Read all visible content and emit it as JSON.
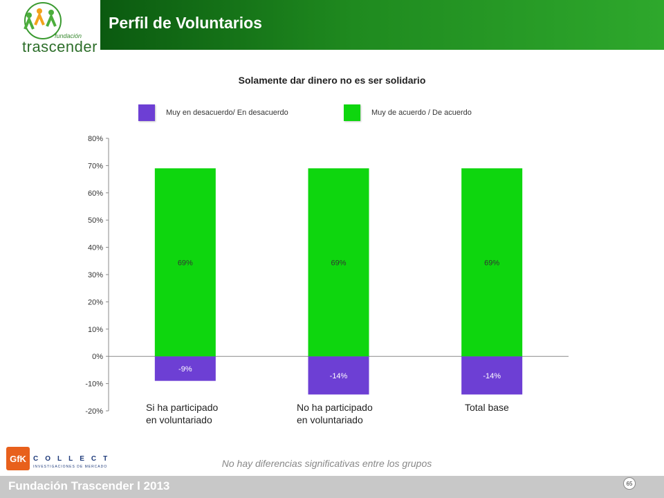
{
  "header": {
    "title": "Perfil de Voluntarios",
    "logo_small": "fundación",
    "logo_word": "trascender"
  },
  "chart_data": {
    "type": "bar",
    "title": "Solamente dar dinero no es ser solidario",
    "categories": [
      "Si ha participado\nen voluntariado",
      "No ha participado\nen voluntariado",
      "Total base"
    ],
    "series": [
      {
        "name": "Muy en desacuerdo/ En desacuerdo",
        "color": "#6d3fd4",
        "values": [
          -9,
          -14,
          -14
        ],
        "labels": [
          "-9%",
          "-14%",
          "-14%"
        ]
      },
      {
        "name": "Muy de acuerdo / De acuerdo",
        "color": "#0ed60e",
        "values": [
          69,
          69,
          69
        ],
        "labels": [
          "69%",
          "69%",
          "69%"
        ]
      }
    ],
    "ylim": [
      -20,
      80
    ],
    "yticks": [
      "-20%",
      "-10%",
      "0%",
      "10%",
      "20%",
      "30%",
      "40%",
      "50%",
      "60%",
      "70%",
      "80%"
    ],
    "stacked": true,
    "legend_position": "top",
    "grid": false
  },
  "footer": {
    "note": "No hay diferencias significativas entre los grupos",
    "org": "Fundación Trascender l 2013",
    "page": "65",
    "gfk": "GfK",
    "collect": "COLLECT",
    "collect_sub": "INVESTIGACIONES DE MERCADO"
  }
}
